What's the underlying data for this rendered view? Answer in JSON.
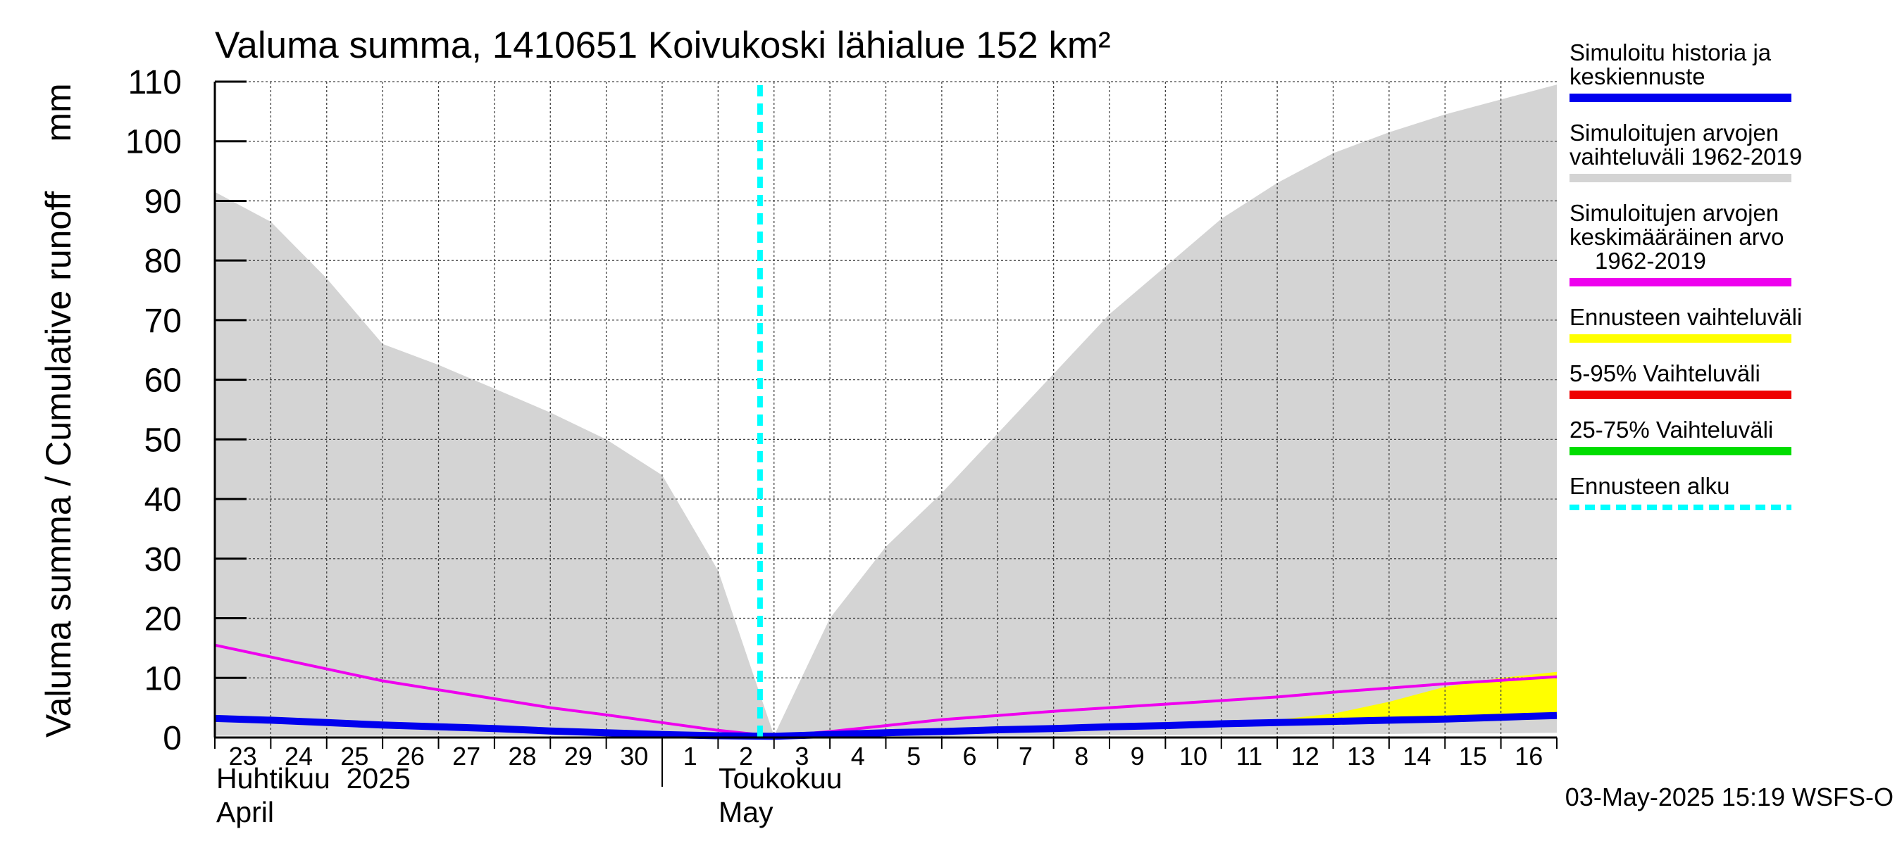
{
  "chart_data": {
    "type": "area",
    "title": "Valuma summa, 1410651 Koivukoski lähialue 152 km²",
    "ylabel": "Valuma summa / Cumulative runoff",
    "yunit": "mm",
    "ylim": [
      0,
      110
    ],
    "yticks": [
      0,
      10,
      20,
      30,
      40,
      50,
      60,
      70,
      80,
      90,
      100,
      110
    ],
    "x_start": "2025-04-23",
    "x_end": "2025-05-17",
    "x_dates": [
      "2025-04-23",
      "2025-04-24",
      "2025-04-25",
      "2025-04-26",
      "2025-04-27",
      "2025-04-28",
      "2025-04-29",
      "2025-04-30",
      "2025-05-01",
      "2025-05-02",
      "2025-05-03",
      "2025-05-04",
      "2025-05-05",
      "2025-05-06",
      "2025-05-07",
      "2025-05-08",
      "2025-05-09",
      "2025-05-10",
      "2025-05-11",
      "2025-05-12",
      "2025-05-13",
      "2025-05-14",
      "2025-05-15",
      "2025-05-16",
      "2025-05-17"
    ],
    "day_labels": [
      "23",
      "24",
      "25",
      "26",
      "27",
      "28",
      "29",
      "30",
      "1",
      "2",
      "3",
      "4",
      "5",
      "6",
      "7",
      "8",
      "9",
      "10",
      "11",
      "12",
      "13",
      "14",
      "15",
      "16"
    ],
    "month_labels": [
      {
        "fi": "Huhtikuu  2025",
        "en": "April"
      },
      {
        "fi": "Toukokuu",
        "en": "May"
      }
    ],
    "grid": true,
    "forecast_start": "2025-05-03",
    "series": [
      {
        "name": "Simuloitujen arvojen vaihteluväli 1962-2019",
        "kind": "band",
        "color": "#d4d4d4",
        "upper": [
          91.5,
          86.5,
          77,
          66,
          62.5,
          58.5,
          54.5,
          50,
          44,
          28,
          0.3,
          20,
          32,
          41,
          51,
          61,
          71,
          79,
          87,
          93,
          98,
          101.5,
          104.5,
          107,
          109.5
        ],
        "lower": [
          0.3,
          0.3,
          0.3,
          0.3,
          0.3,
          0.3,
          0.3,
          0.3,
          0.3,
          0.2,
          0,
          0,
          0.2,
          0.2,
          0.3,
          0.3,
          0.4,
          0.4,
          0.5,
          0.5,
          0.6,
          0.6,
          0.7,
          0.7,
          0.8
        ]
      },
      {
        "name": "Ennusteen vaihteluväli",
        "kind": "band",
        "color": "#ffff00",
        "x": [
          "2025-05-03",
          "2025-05-04",
          "2025-05-05",
          "2025-05-06",
          "2025-05-07",
          "2025-05-08",
          "2025-05-09",
          "2025-05-10",
          "2025-05-11",
          "2025-05-12",
          "2025-05-13",
          "2025-05-14",
          "2025-05-15",
          "2025-05-16",
          "2025-05-17"
        ],
        "upper": [
          0.3,
          0.7,
          1.0,
          1.3,
          1.6,
          1.8,
          2.1,
          2.3,
          2.6,
          3.0,
          4.0,
          6.0,
          8.5,
          10.0,
          11.0
        ],
        "lower": [
          0.3,
          0.7,
          1.0,
          1.3,
          1.6,
          1.8,
          2.1,
          2.3,
          2.6,
          2.9,
          3.0,
          3.2,
          3.4,
          3.6,
          3.8
        ]
      },
      {
        "name": "Simuloitujen arvojen keskimääräinen arvo 1962-2019",
        "kind": "line",
        "color": "#ee00ee",
        "values": [
          15.5,
          13.5,
          11.5,
          9.5,
          8.0,
          6.5,
          5.0,
          3.8,
          2.5,
          1.2,
          0.2,
          1.0,
          2.0,
          3.0,
          3.7,
          4.4,
          5.0,
          5.6,
          6.2,
          6.8,
          7.6,
          8.3,
          9.0,
          9.6,
          10.2
        ]
      },
      {
        "name": "Simuloitu historia ja keskiennuste",
        "kind": "line",
        "color": "#0000ee",
        "values": [
          3.2,
          2.9,
          2.5,
          2.1,
          1.8,
          1.5,
          1.1,
          0.8,
          0.5,
          0.3,
          0.2,
          0.5,
          0.8,
          1.0,
          1.3,
          1.5,
          1.8,
          2.0,
          2.3,
          2.5,
          2.7,
          2.9,
          3.1,
          3.4,
          3.7
        ]
      }
    ],
    "legend": {
      "placement": "right",
      "entries": [
        {
          "lines": [
            "Simuloitu historia ja",
            "keskiennuste"
          ],
          "color": "#0000ee",
          "style": "solid"
        },
        {
          "lines": [
            "Simuloitujen arvojen",
            "vaihteluväli 1962-2019"
          ],
          "color": "#d4d4d4",
          "style": "solid"
        },
        {
          "lines": [
            "Simuloitujen arvojen",
            "keskimääräinen arvo",
            "1962-2019"
          ],
          "color": "#ee00ee",
          "style": "solid"
        },
        {
          "lines": [
            "Ennusteen vaihteluväli"
          ],
          "color": "#ffff00",
          "style": "solid"
        },
        {
          "lines": [
            "5-95% Vaihteluväli"
          ],
          "color": "#ee0000",
          "style": "solid"
        },
        {
          "lines": [
            "25-75% Vaihteluväli"
          ],
          "color": "#00dd00",
          "style": "solid"
        },
        {
          "lines": [
            "Ennusteen alku"
          ],
          "color": "#00ffff",
          "style": "dashed"
        }
      ]
    },
    "footer": "03-May-2025 15:19 WSFS-O"
  }
}
